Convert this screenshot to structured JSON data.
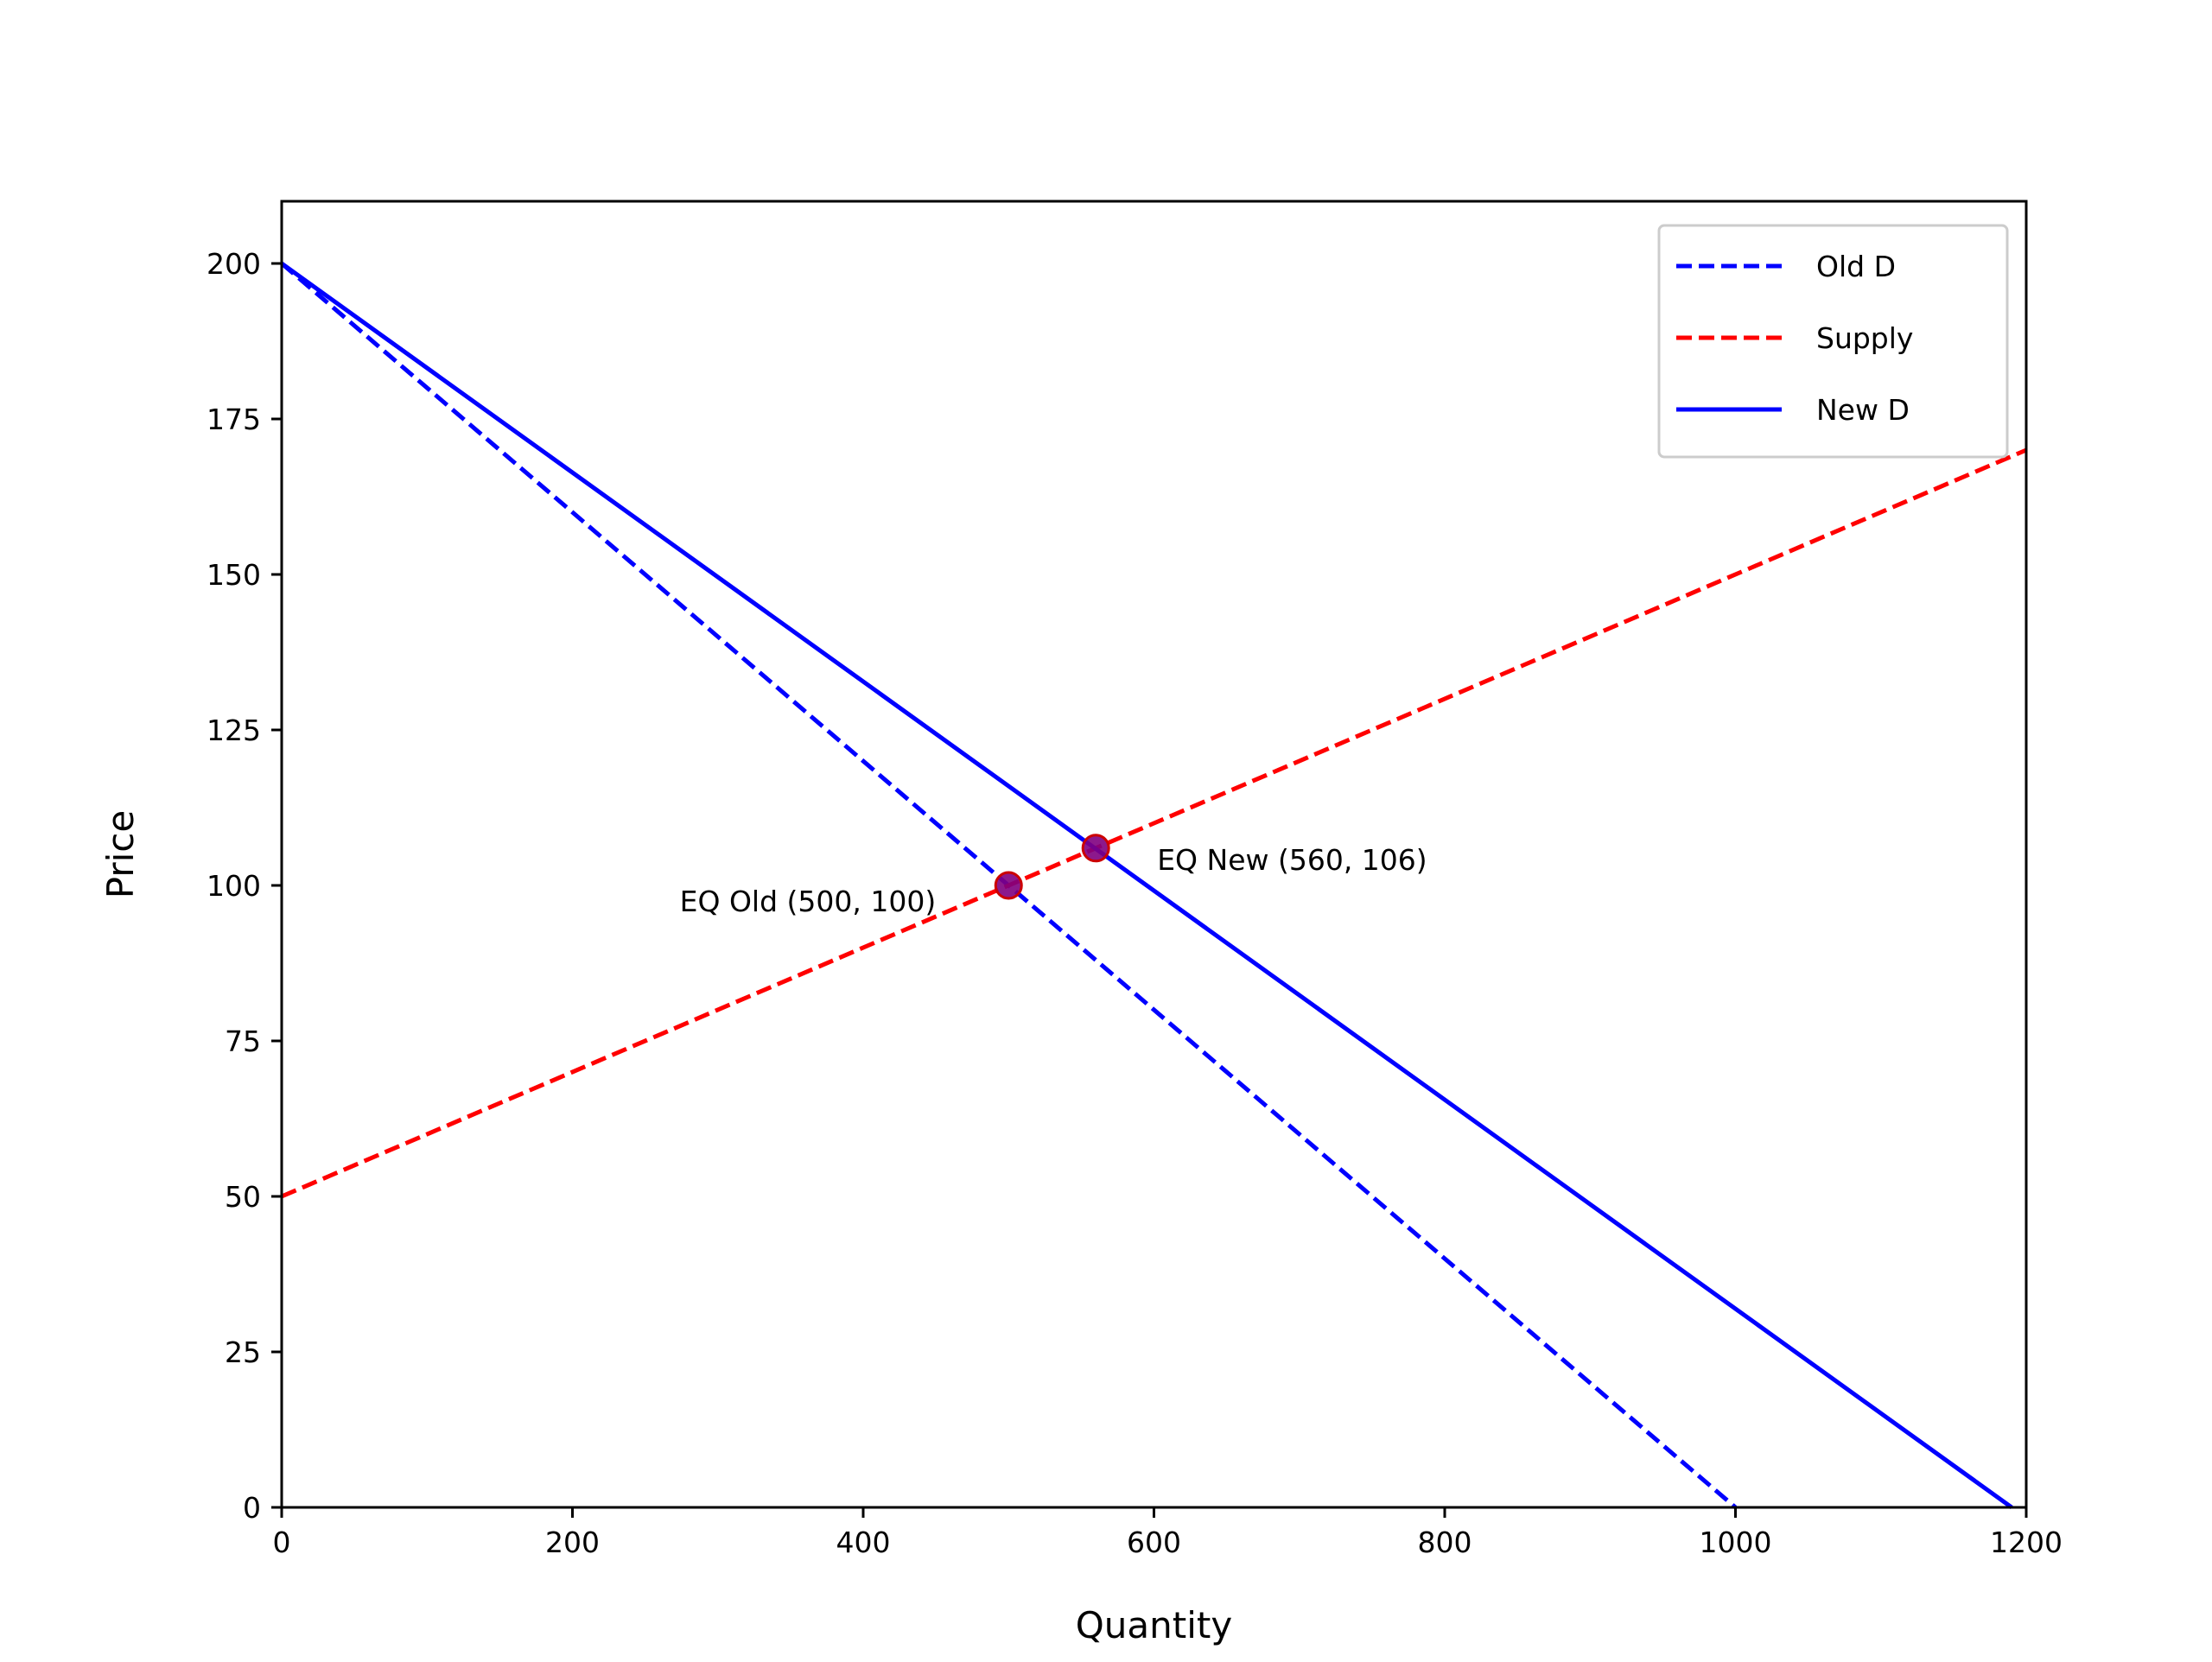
{
  "chart_data": {
    "type": "line",
    "title": "",
    "xlabel": "Quantity",
    "ylabel": "Price",
    "xlim": [
      0,
      1200
    ],
    "ylim": [
      0,
      210
    ],
    "xticks": [
      0,
      200,
      400,
      600,
      800,
      1000,
      1200
    ],
    "yticks": [
      0,
      25,
      50,
      75,
      100,
      125,
      150,
      175,
      200
    ],
    "grid": false,
    "legend_position": "top-right",
    "series": [
      {
        "name": "Old D",
        "style": "dashed",
        "color": "#0000ff",
        "x": [
          0,
          1000
        ],
        "y": [
          200,
          0
        ]
      },
      {
        "name": "Supply",
        "style": "dashed",
        "color": "#ff0000",
        "x": [
          0,
          1200
        ],
        "y": [
          50,
          170
        ]
      },
      {
        "name": "New D",
        "style": "solid",
        "color": "#0000ff",
        "x": [
          0,
          1190
        ],
        "y": [
          200,
          0
        ]
      }
    ],
    "points": [
      {
        "x": 500,
        "y": 100,
        "label": "EQ Old (500, 100)"
      },
      {
        "x": 560,
        "y": 106,
        "label": "EQ New (560, 106)"
      }
    ],
    "marker_fill": "#800080",
    "marker_edge": "#cc0000"
  }
}
